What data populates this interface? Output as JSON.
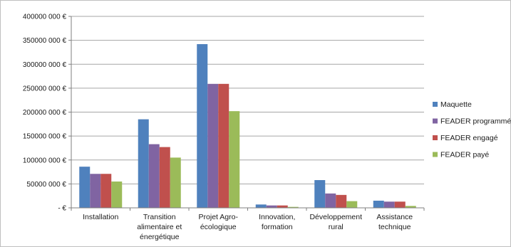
{
  "chart_data": {
    "type": "bar",
    "title": "",
    "xlabel": "",
    "ylabel": "",
    "ylim": [
      0,
      400000000
    ],
    "y_ticks": [
      0,
      50000000,
      100000000,
      150000000,
      200000000,
      250000000,
      300000000,
      350000000,
      400000000
    ],
    "y_tick_labels": [
      "- €",
      "50000 000 €",
      "100000 000 €",
      "150000 000 €",
      "200000 000 €",
      "250000 000 €",
      "300000 000 €",
      "350000 000 €",
      "400000 000 €"
    ],
    "grid": true,
    "legend_position": "right",
    "categories": [
      [
        "Installation"
      ],
      [
        "Transition",
        "alimentaire et",
        "énergétique"
      ],
      [
        "Projet Agro-",
        "écologique"
      ],
      [
        "Innovation,",
        "formation"
      ],
      [
        "Développement",
        "rural"
      ],
      [
        "Assistance",
        "technique"
      ]
    ],
    "series": [
      {
        "name": "Maquette",
        "color": "#4f81bd",
        "values": [
          86000000,
          185000000,
          342000000,
          7000000,
          58000000,
          15000000
        ]
      },
      {
        "name": "FEADER programmé",
        "color": "#8064a2",
        "values": [
          71000000,
          133000000,
          259000000,
          5000000,
          30000000,
          13000000
        ]
      },
      {
        "name": "FEADER engagé",
        "color": "#c0504d",
        "values": [
          71000000,
          127000000,
          259000000,
          5000000,
          27000000,
          13000000
        ]
      },
      {
        "name": "FEADER payé",
        "color": "#9bbb59",
        "values": [
          55000000,
          105000000,
          202000000,
          2000000,
          14000000,
          4000000
        ]
      }
    ]
  }
}
